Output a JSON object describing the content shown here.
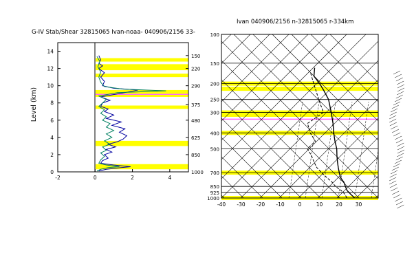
{
  "chart_data": [
    {
      "type": "line",
      "title": "G-IV Stab/Shear 32815065 Ivan-noaa- 040906/2156 33-",
      "ylabel": "Level (km)",
      "xlim": [
        -2,
        5
      ],
      "ylim": [
        0,
        15
      ],
      "x_ticks": [
        "-2",
        "0",
        "2",
        "4"
      ],
      "y_ticks": [
        "0",
        "2",
        "4",
        "6",
        "8",
        "10",
        "12",
        "14"
      ],
      "pressure_ticks": [
        "150",
        "220",
        "290",
        "375",
        "480",
        "625",
        "850",
        "1000"
      ],
      "series": [
        {
          "color": "#0000a0",
          "points": [
            [
              0.2,
              0.1
            ],
            [
              0.6,
              0.3
            ],
            [
              1.4,
              0.5
            ],
            [
              1.9,
              0.6
            ],
            [
              1.0,
              0.8
            ],
            [
              0.3,
              1.0
            ],
            [
              0.4,
              1.3
            ],
            [
              0.7,
              1.6
            ],
            [
              0.5,
              2.0
            ],
            [
              0.9,
              2.3
            ],
            [
              0.6,
              2.6
            ],
            [
              1.1,
              2.9
            ],
            [
              0.7,
              3.2
            ],
            [
              1.2,
              3.5
            ],
            [
              1.5,
              3.8
            ],
            [
              1.7,
              4.2
            ],
            [
              1.3,
              4.6
            ],
            [
              1.6,
              5.0
            ],
            [
              0.9,
              5.4
            ],
            [
              1.4,
              5.8
            ],
            [
              0.6,
              6.2
            ],
            [
              1.0,
              6.6
            ],
            [
              0.5,
              7.0
            ],
            [
              0.7,
              7.3
            ],
            [
              0.3,
              7.6
            ],
            [
              0.4,
              8.0
            ],
            [
              0.8,
              8.3
            ],
            [
              0.3,
              8.7
            ],
            [
              1.6,
              9.2
            ],
            [
              2.3,
              9.5
            ],
            [
              1.0,
              9.7
            ],
            [
              0.4,
              10.0
            ],
            [
              0.5,
              10.5
            ],
            [
              0.3,
              11.0
            ],
            [
              0.5,
              11.5
            ],
            [
              0.2,
              12.0
            ],
            [
              0.4,
              12.3
            ],
            [
              0.2,
              12.6
            ],
            [
              0.3,
              13.0
            ],
            [
              0.2,
              13.5
            ]
          ]
        },
        {
          "color": "#008060",
          "points": [
            [
              0.1,
              0.1
            ],
            [
              0.3,
              0.3
            ],
            [
              0.7,
              0.5
            ],
            [
              1.3,
              0.6
            ],
            [
              0.6,
              0.8
            ],
            [
              0.2,
              1.0
            ],
            [
              0.3,
              1.4
            ],
            [
              0.5,
              1.8
            ],
            [
              0.3,
              2.2
            ],
            [
              0.6,
              2.5
            ],
            [
              0.4,
              2.9
            ],
            [
              0.8,
              3.2
            ],
            [
              0.5,
              3.6
            ],
            [
              0.9,
              4.0
            ],
            [
              0.6,
              4.4
            ],
            [
              1.0,
              4.8
            ],
            [
              0.6,
              5.2
            ],
            [
              0.8,
              5.6
            ],
            [
              0.4,
              6.0
            ],
            [
              0.6,
              6.4
            ],
            [
              0.3,
              6.8
            ],
            [
              0.5,
              7.2
            ],
            [
              0.2,
              7.6
            ],
            [
              0.4,
              8.0
            ],
            [
              0.6,
              8.4
            ],
            [
              0.2,
              8.8
            ],
            [
              1.2,
              9.2
            ],
            [
              3.8,
              9.4
            ],
            [
              1.5,
              9.6
            ],
            [
              0.5,
              9.9
            ],
            [
              0.3,
              10.4
            ],
            [
              0.2,
              11.0
            ],
            [
              0.3,
              11.6
            ],
            [
              0.15,
              12.2
            ],
            [
              0.25,
              12.8
            ],
            [
              0.1,
              13.4
            ]
          ]
        }
      ],
      "highlight_levels_km": [
        0.5,
        0.7,
        3.2,
        3.4,
        7.5,
        8.9,
        9.3,
        11.2,
        12.0,
        12.3,
        13.0
      ],
      "marker_level_km": 9.0
    },
    {
      "type": "line",
      "title": "Ivan 040906/2156 n-32815065 r-334km",
      "xlim": [
        -40,
        40
      ],
      "ylim": [
        1000,
        100
      ],
      "x_ticks": [
        "-40",
        "-30",
        "-20",
        "-10",
        "0",
        "10",
        "20",
        "30"
      ],
      "pressure_levels": [
        "100",
        "150",
        "200",
        "250",
        "300",
        "400",
        "500",
        "700",
        "850",
        "925",
        "1000"
      ],
      "highlight_pressures": [
        200,
        215,
        300,
        310,
        400,
        700,
        1000
      ],
      "marker_pressure": 330,
      "series": [
        {
          "style": "solid",
          "points": [
            [
              28,
              1000
            ],
            [
              25,
              950
            ],
            [
              22,
              900
            ],
            [
              20,
              850
            ],
            [
              18,
              800
            ],
            [
              15,
              750
            ],
            [
              13,
              700
            ],
            [
              11,
              650
            ],
            [
              9,
              600
            ],
            [
              7,
              550
            ],
            [
              5,
              500
            ],
            [
              2,
              450
            ],
            [
              -1,
              400
            ],
            [
              -4,
              350
            ],
            [
              -8,
              300
            ],
            [
              -13,
              250
            ],
            [
              -18,
              220
            ],
            [
              -22,
              200
            ],
            [
              -27,
              180
            ],
            [
              -29,
              160
            ]
          ]
        },
        {
          "style": "dashed",
          "points": [
            [
              24,
              1000
            ],
            [
              22,
              950
            ],
            [
              19,
              900
            ],
            [
              15,
              850
            ],
            [
              12,
              800
            ],
            [
              8,
              750
            ],
            [
              4,
              700
            ],
            [
              0,
              650
            ],
            [
              -3,
              600
            ],
            [
              -6,
              550
            ],
            [
              -10,
              500
            ],
            [
              -8,
              450
            ],
            [
              -13,
              400
            ],
            [
              -17,
              350
            ],
            [
              -12,
              300
            ],
            [
              -18,
              250
            ],
            [
              -25,
              200
            ],
            [
              -30,
              170
            ]
          ]
        }
      ]
    }
  ]
}
